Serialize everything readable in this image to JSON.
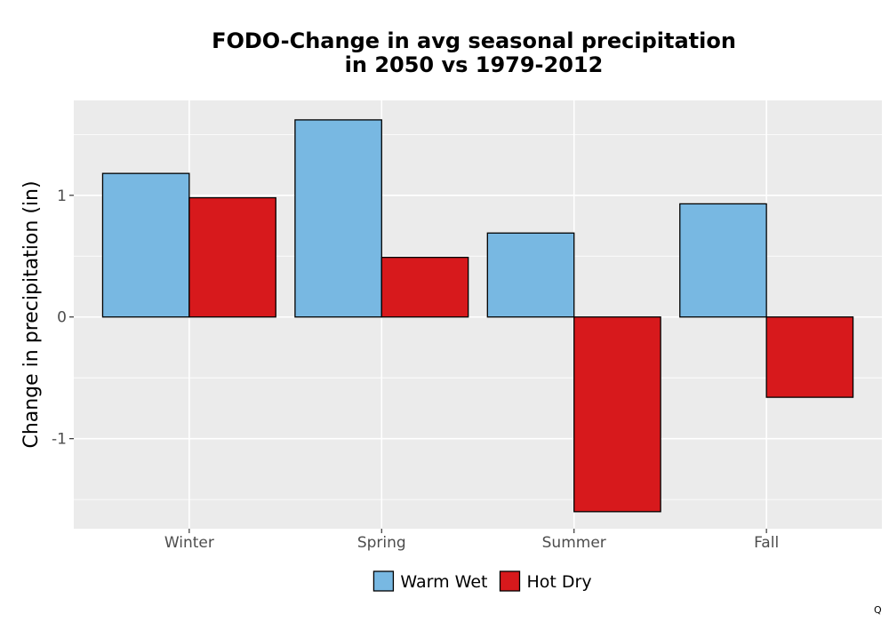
{
  "chart_data": {
    "type": "bar",
    "title": "FODO-Change in avg seasonal precipitation\nin 2050 vs 1979-2012",
    "xlabel": "",
    "ylabel": "Change in precipitation (in)",
    "categories": [
      "Winter",
      "Spring",
      "Summer",
      "Fall"
    ],
    "series": [
      {
        "name": "Warm Wet",
        "color": "#78b8e2",
        "values": [
          1.18,
          1.62,
          0.69,
          0.93
        ]
      },
      {
        "name": "Hot Dry",
        "color": "#d7191c",
        "values": [
          0.98,
          0.49,
          -1.6,
          -0.66
        ]
      }
    ],
    "ylim": [
      -1.74,
      1.78
    ],
    "yticks": [
      -1,
      0,
      1
    ],
    "ytick_labels": [
      "-1",
      "0",
      "1"
    ],
    "grid": true,
    "legend_position": "bottom"
  },
  "corner_label": "Q"
}
